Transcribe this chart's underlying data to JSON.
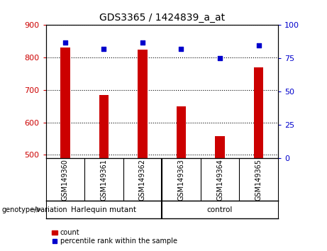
{
  "title": "GDS3365 / 1424839_a_at",
  "samples": [
    "GSM149360",
    "GSM149361",
    "GSM149362",
    "GSM149363",
    "GSM149364",
    "GSM149365"
  ],
  "counts": [
    830,
    685,
    825,
    650,
    557,
    770
  ],
  "percentile_ranks": [
    87,
    82,
    87,
    82,
    75,
    85
  ],
  "ylim_left": [
    490,
    900
  ],
  "ylim_right": [
    0,
    100
  ],
  "yticks_left": [
    500,
    600,
    700,
    800,
    900
  ],
  "yticks_right": [
    0,
    25,
    50,
    75,
    100
  ],
  "bar_color": "#cc0000",
  "dot_color": "#0000cc",
  "bar_width": 0.25,
  "groups": [
    {
      "label": "Harlequin mutant",
      "indices": [
        0,
        1,
        2
      ],
      "color": "#90ee90"
    },
    {
      "label": "control",
      "indices": [
        3,
        4,
        5
      ],
      "color": "#90ee90"
    }
  ],
  "group_label": "genotype/variation",
  "legend_count_label": "count",
  "legend_pct_label": "percentile rank within the sample",
  "bg_color": "#ffffff",
  "plot_bg": "#ffffff",
  "left_tick_color": "#cc0000",
  "right_tick_color": "#0000cc",
  "gray_box_color": "#d3d3d3",
  "green_color": "#90ee90"
}
